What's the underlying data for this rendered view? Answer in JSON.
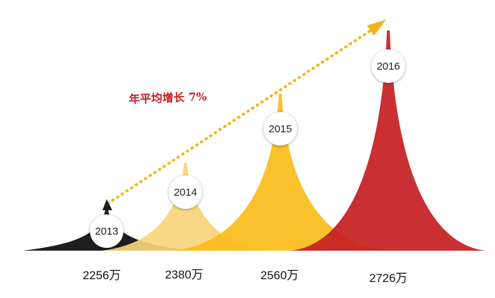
{
  "chart_data": {
    "type": "area",
    "title": "",
    "xlabel": "",
    "ylabel": "",
    "categories": [
      "2013",
      "2014",
      "2015",
      "2016"
    ],
    "values": [
      2256,
      2380,
      2560,
      2726
    ],
    "value_labels": [
      "2256万",
      "2380万",
      "2560万",
      "2726万"
    ],
    "colors": [
      "#1e1e1e",
      "#f7d57a",
      "#f9bc1a",
      "#c41e22"
    ],
    "annotation": {
      "text": "年平均增长 7%",
      "color": "#c41f24",
      "arrow_color": "#f2b61b"
    },
    "grid": false,
    "legend": "none"
  }
}
